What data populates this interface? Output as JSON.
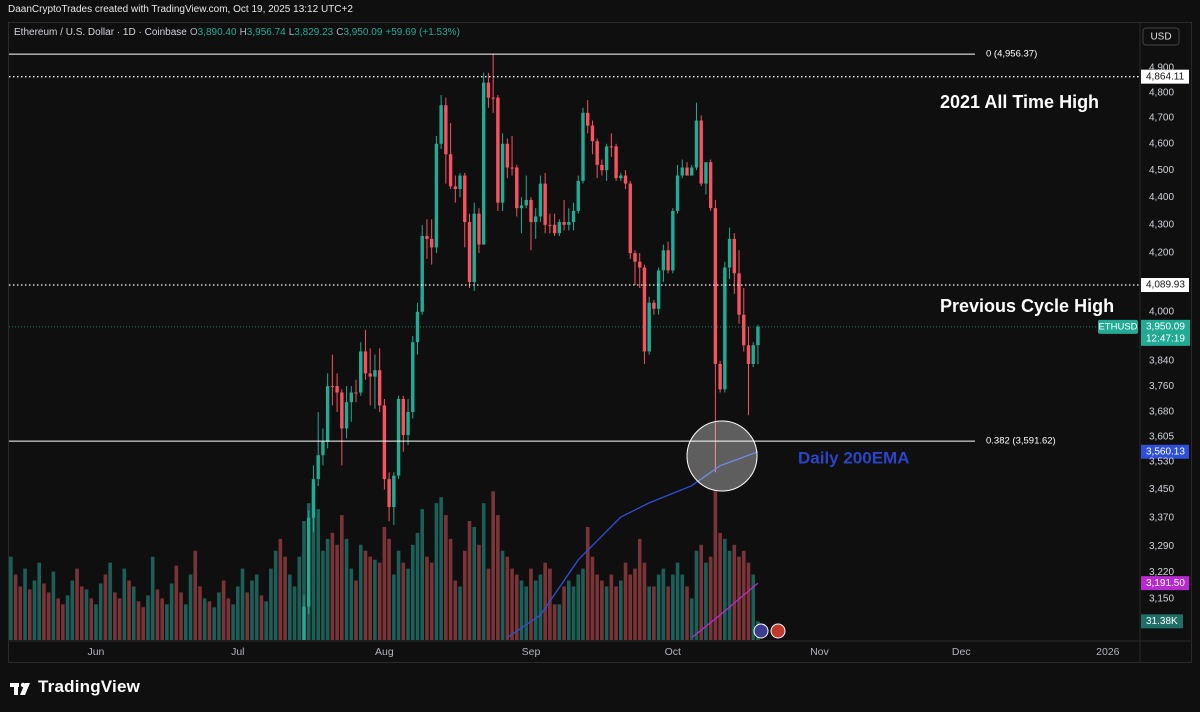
{
  "header": "DaanCryptoTrades created with TradingView.com, Oct 19, 2025 13:12 UTC+2",
  "footer": "TradingView",
  "chart_data": {
    "type": "candlestick",
    "title": "Ethereum / U.S. Dollar · 1D · Coinbase",
    "legend_values": [
      {
        "key": "O",
        "label": "3,890.40"
      },
      {
        "key": "H",
        "label": "3,956.74"
      },
      {
        "key": "L",
        "label": "3,829.23"
      },
      {
        "key": "C",
        "label": "3,950.09"
      }
    ],
    "change": "+59.69 (+1.53%)",
    "currency": "USD",
    "log_scale": true,
    "grid": false,
    "up_color": "#22ab94",
    "down_color": "#f7525f",
    "xlim": [
      -0.6,
      238.8
    ],
    "xticks": [
      {
        "value": 18,
        "label": "Jun"
      },
      {
        "value": 48,
        "label": "Jul"
      },
      {
        "value": 79,
        "label": "Aug"
      },
      {
        "value": 110,
        "label": "Sep"
      },
      {
        "value": 140,
        "label": "Oct"
      },
      {
        "value": 171,
        "label": "Nov"
      },
      {
        "value": 201,
        "label": "Dec"
      },
      {
        "value": 232,
        "label": "2026"
      }
    ],
    "ylim": [
      3044,
      4994
    ],
    "yticks": [
      {
        "value": 4900,
        "label": "4,900"
      },
      {
        "value": 4800,
        "label": "4,800"
      },
      {
        "value": 4700,
        "label": "4,700"
      },
      {
        "value": 4600,
        "label": "4,600"
      },
      {
        "value": 4500,
        "label": "4,500"
      },
      {
        "value": 4400,
        "label": "4,400"
      },
      {
        "value": 4300,
        "label": "4,300"
      },
      {
        "value": 4200,
        "label": "4,200"
      },
      {
        "value": 4000,
        "label": "4,000"
      },
      {
        "value": 3840,
        "label": "3,840"
      },
      {
        "value": 3760,
        "label": "3,760"
      },
      {
        "value": 3680,
        "label": "3,680"
      },
      {
        "value": 3605,
        "label": "3,605"
      },
      {
        "value": 3530,
        "label": "3,530"
      },
      {
        "value": 3450,
        "label": "3,450"
      },
      {
        "value": 3370,
        "label": "3,370"
      },
      {
        "value": 3290,
        "label": "3,290"
      },
      {
        "value": 3220,
        "label": "3,220"
      },
      {
        "value": 3150,
        "label": "3,150"
      }
    ],
    "open": [
      null,
      null,
      null,
      null,
      null,
      null,
      null,
      null,
      null,
      null,
      null,
      null,
      null,
      null,
      null,
      null,
      null,
      null,
      null,
      null,
      null,
      null,
      null,
      null,
      null,
      null,
      null,
      null,
      null,
      null,
      null,
      null,
      null,
      null,
      null,
      null,
      null,
      null,
      null,
      null,
      null,
      null,
      null,
      null,
      null,
      null,
      null,
      null,
      null,
      null,
      null,
      null,
      null,
      null,
      null,
      null,
      null,
      null,
      null,
      null,
      null,
      2970,
      3010,
      3130,
      3370,
      3480,
      3550,
      3590,
      3760,
      3760,
      3740,
      3630,
      3710,
      3740,
      3740,
      3870,
      3800,
      3790,
      3810,
      3700,
      3480,
      3400,
      3490,
      3720,
      3610,
      3680,
      3900,
      4000,
      4260,
      4250,
      4220,
      4600,
      4750,
      4560,
      4440,
      4430,
      4480,
      4310,
      4100,
      4340,
      4230,
      4840,
      4780,
      4780,
      4380,
      4600,
      4510,
      4510,
      4360,
      4370,
      4390,
      4310,
      4330,
      4450,
      4300,
      4300,
      4270,
      4310,
      4300,
      4310,
      4350,
      4460,
      4720,
      4670,
      4610,
      4520,
      4500,
      4590,
      4590,
      4470,
      4480,
      4450,
      4200,
      4170,
      4150,
      3870,
      4030,
      4010,
      4140,
      4210,
      4140,
      4350,
      4480,
      4510,
      4480,
      4510,
      4690,
      4450,
      4530,
      4360,
      3830,
      3750,
      4150,
      4250,
      4130,
      3990,
      3890,
      3830,
      3890.4
    ],
    "high": [
      null,
      null,
      null,
      null,
      null,
      null,
      null,
      null,
      null,
      null,
      null,
      null,
      null,
      null,
      null,
      null,
      null,
      null,
      null,
      null,
      null,
      null,
      null,
      null,
      null,
      null,
      null,
      null,
      null,
      null,
      null,
      null,
      null,
      null,
      null,
      null,
      null,
      null,
      null,
      null,
      null,
      null,
      null,
      null,
      null,
      null,
      null,
      null,
      null,
      null,
      null,
      null,
      null,
      null,
      null,
      null,
      null,
      null,
      null,
      null,
      null,
      3030,
      3160,
      3390,
      3520,
      3680,
      3630,
      3800,
      3860,
      3800,
      3750,
      3760,
      3760,
      3780,
      3900,
      3940,
      3880,
      3860,
      3880,
      3720,
      3500,
      3500,
      3730,
      3730,
      3720,
      3920,
      4030,
      4300,
      4320,
      4320,
      4630,
      4790,
      4780,
      4680,
      4480,
      4490,
      4490,
      4340,
      4380,
      4360,
      4880,
      4880,
      4956.37,
      4790,
      4640,
      4620,
      4630,
      4520,
      4400,
      4480,
      4400,
      4360,
      4480,
      4490,
      4340,
      4340,
      4320,
      4390,
      4360,
      4380,
      4480,
      4740,
      4770,
      4690,
      4620,
      4540,
      4600,
      4640,
      4600,
      4490,
      4500,
      4460,
      4210,
      4200,
      4160,
      4050,
      4040,
      4150,
      4230,
      4240,
      4360,
      4520,
      4540,
      4530,
      4520,
      4760,
      4710,
      4530,
      4540,
      4390,
      3840,
      4170,
      4290,
      4270,
      4210,
      4080,
      3950,
      3900,
      3956.74
    ],
    "low": [
      null,
      null,
      null,
      null,
      null,
      null,
      null,
      null,
      null,
      null,
      null,
      null,
      null,
      null,
      null,
      null,
      null,
      null,
      null,
      null,
      null,
      null,
      null,
      null,
      null,
      null,
      null,
      null,
      null,
      null,
      null,
      null,
      null,
      null,
      null,
      null,
      null,
      null,
      null,
      null,
      null,
      null,
      null,
      null,
      null,
      null,
      null,
      null,
      null,
      null,
      null,
      null,
      null,
      null,
      null,
      null,
      null,
      null,
      null,
      null,
      null,
      2940,
      2990,
      3110,
      3330,
      3460,
      3520,
      3570,
      3700,
      3680,
      3520,
      3600,
      3650,
      3710,
      3730,
      3780,
      3700,
      3690,
      3680,
      3450,
      3360,
      3350,
      3480,
      3560,
      3580,
      3660,
      3860,
      3990,
      4180,
      4160,
      4200,
      4580,
      4450,
      4430,
      4380,
      4400,
      4220,
      4080,
      4070,
      4200,
      4230,
      4740,
      4720,
      4350,
      4350,
      4470,
      4480,
      4330,
      4270,
      4360,
      4210,
      4250,
      4310,
      4270,
      4270,
      4260,
      4260,
      4280,
      4280,
      4280,
      4340,
      4450,
      4640,
      4560,
      4470,
      4480,
      4460,
      4550,
      4460,
      4460,
      4430,
      4180,
      4090,
      4080,
      3830,
      3860,
      3990,
      3990,
      4100,
      4130,
      4130,
      4340,
      4470,
      4480,
      4480,
      4500,
      4440,
      4410,
      4350,
      3500,
      3740,
      3740,
      4110,
      4060,
      3960,
      3870,
      3670,
      3820,
      3829.23
    ],
    "close": [
      null,
      null,
      null,
      null,
      null,
      null,
      null,
      null,
      null,
      null,
      null,
      null,
      null,
      null,
      null,
      null,
      null,
      null,
      null,
      null,
      null,
      null,
      null,
      null,
      null,
      null,
      null,
      null,
      null,
      null,
      null,
      null,
      null,
      null,
      null,
      null,
      null,
      null,
      null,
      null,
      null,
      null,
      null,
      null,
      null,
      null,
      null,
      null,
      null,
      null,
      null,
      null,
      null,
      null,
      null,
      null,
      null,
      null,
      null,
      null,
      null,
      3010,
      3130,
      3370,
      3480,
      3550,
      3590,
      3760,
      3760,
      3740,
      3630,
      3710,
      3740,
      3740,
      3870,
      3800,
      3790,
      3810,
      3700,
      3480,
      3400,
      3490,
      3720,
      3610,
      3680,
      3900,
      4000,
      4260,
      4250,
      4220,
      4600,
      4750,
      4560,
      4440,
      4430,
      4480,
      4310,
      4100,
      4340,
      4230,
      4840,
      4780,
      4780,
      4380,
      4600,
      4510,
      4510,
      4360,
      4370,
      4390,
      4310,
      4330,
      4450,
      4300,
      4300,
      4270,
      4310,
      4300,
      4310,
      4350,
      4460,
      4720,
      4670,
      4610,
      4520,
      4500,
      4590,
      4590,
      4470,
      4480,
      4450,
      4200,
      4170,
      4150,
      3870,
      4030,
      4010,
      4140,
      4210,
      4140,
      4350,
      4480,
      4510,
      4480,
      4510,
      4690,
      4450,
      4530,
      4360,
      3830,
      3750,
      4150,
      4250,
      4130,
      3990,
      3890,
      3830,
      3890,
      3950.09
    ],
    "volume": {
      "lim": [
        0,
        1000
      ],
      "up_color": "#1c5e58",
      "down_color": "#7a3437",
      "last_label": "31.38K",
      "values": [
        140,
        110,
        90,
        120,
        85,
        100,
        130,
        95,
        80,
        115,
        70,
        60,
        75,
        100,
        120,
        90,
        85,
        70,
        60,
        95,
        110,
        130,
        80,
        70,
        120,
        100,
        90,
        65,
        55,
        75,
        140,
        85,
        70,
        60,
        95,
        125,
        80,
        60,
        110,
        150,
        90,
        70,
        65,
        55,
        80,
        100,
        70,
        60,
        90,
        120,
        80,
        100,
        110,
        75,
        65,
        120,
        150,
        170,
        140,
        110,
        90,
        140,
        200,
        230,
        260,
        220,
        150,
        170,
        180,
        160,
        210,
        170,
        120,
        100,
        160,
        150,
        140,
        135,
        130,
        190,
        170,
        110,
        150,
        130,
        120,
        160,
        180,
        220,
        140,
        130,
        230,
        240,
        210,
        170,
        100,
        90,
        150,
        200,
        190,
        160,
        230,
        120,
        250,
        210,
        150,
        140,
        120,
        110,
        100,
        90,
        120,
        100,
        110,
        130,
        120,
        60,
        60,
        90,
        100,
        90,
        110,
        120,
        190,
        140,
        110,
        100,
        90,
        110,
        90,
        100,
        130,
        110,
        120,
        170,
        130,
        90,
        90,
        110,
        120,
        90,
        110,
        130,
        110,
        90,
        70,
        150,
        160,
        130,
        140,
        250,
        180,
        170,
        150,
        160,
        140,
        150,
        130,
        110,
        31.38
      ],
      "rising": [
        true,
        false,
        false,
        true,
        false,
        true,
        true,
        false,
        false,
        true,
        false,
        false,
        true,
        true,
        false,
        false,
        true,
        false,
        true,
        true,
        false,
        true,
        false,
        false,
        true,
        false,
        true,
        false,
        false,
        true,
        true,
        false,
        false,
        true,
        true,
        false,
        false,
        true,
        true,
        false,
        false,
        true,
        false,
        true,
        true,
        false,
        false,
        true,
        true,
        true,
        false,
        true,
        true,
        false,
        true,
        true,
        true,
        false,
        false,
        true,
        true,
        true,
        true,
        true,
        true,
        true,
        true,
        true,
        false,
        false,
        false,
        true,
        true,
        false,
        true,
        false,
        false,
        true,
        false,
        false,
        false,
        true,
        true,
        false,
        true,
        true,
        true,
        true,
        false,
        false,
        true,
        true,
        false,
        false,
        false,
        true,
        false,
        false,
        true,
        false,
        true,
        false,
        false,
        false,
        true,
        false,
        false,
        false,
        true,
        true,
        false,
        true,
        true,
        false,
        false,
        false,
        true,
        false,
        true,
        true,
        true,
        true,
        false,
        false,
        false,
        false,
        true,
        false,
        false,
        true,
        false,
        false,
        false,
        false,
        false,
        true,
        false,
        true,
        true,
        false,
        true,
        true,
        true,
        false,
        true,
        true,
        false,
        true,
        false,
        false,
        false,
        true,
        true,
        false,
        false,
        false,
        false,
        true,
        true
      ]
    },
    "series": [
      {
        "color": "#2f4fd8",
        "x": [
          105,
          112,
          120,
          129,
          135,
          144,
          150,
          158
        ],
        "values": [
          3050,
          3108,
          3254,
          3372,
          3412,
          3461,
          3519,
          3560.13
        ],
        "tag": "3,560.13"
      },
      {
        "color": "#b62ad0",
        "x": [
          144,
          150,
          158
        ],
        "values": [
          3050,
          3108,
          3191.5
        ],
        "tag": "3,191.50"
      }
    ],
    "levels": [
      {
        "value": 4956.37,
        "label": "0 (4,956.37)",
        "style": "solid"
      },
      {
        "value": 3591.62,
        "label": "0.382 (3,591.62)",
        "style": "solid"
      },
      {
        "value": 4864.11,
        "label": "4,864.11",
        "style": "dotted"
      },
      {
        "value": 4089.93,
        "label": "4,089.93",
        "style": "dotted"
      }
    ],
    "price_tag": {
      "symbol": "ETHUSD",
      "value": 3950.09,
      "label": "3,950.09",
      "countdown": "12:47:19"
    },
    "annotations": [
      {
        "text": "2021 All Time High",
        "color": "#ffffff"
      },
      {
        "text": "Previous Cycle High",
        "color": "#ffffff"
      },
      {
        "text": "Daily 200EMA",
        "color": "#2b44c8"
      }
    ]
  }
}
